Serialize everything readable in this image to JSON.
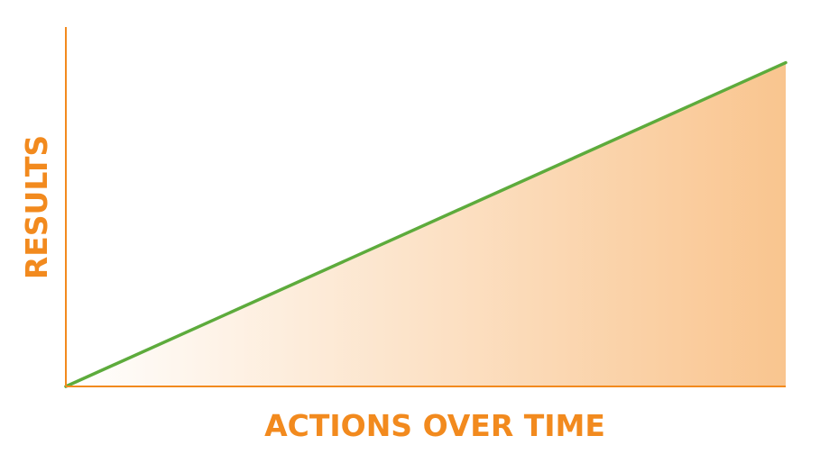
{
  "chart_data": {
    "type": "area",
    "xlabel": "ACTIONS OVER TIME",
    "ylabel": "RESULTS",
    "x": [
      0,
      1
    ],
    "series": [
      {
        "values": [
          0,
          1
        ]
      }
    ],
    "xlim": [
      0,
      1
    ],
    "ylim": [
      0,
      1.11
    ],
    "grid": false,
    "legend": "none"
  },
  "colors": {
    "axis": "#f28a1e",
    "line": "#5dab3c",
    "fill_start": "#ffffff",
    "fill_end": "#f9c58f",
    "title": "#f28a1e"
  }
}
